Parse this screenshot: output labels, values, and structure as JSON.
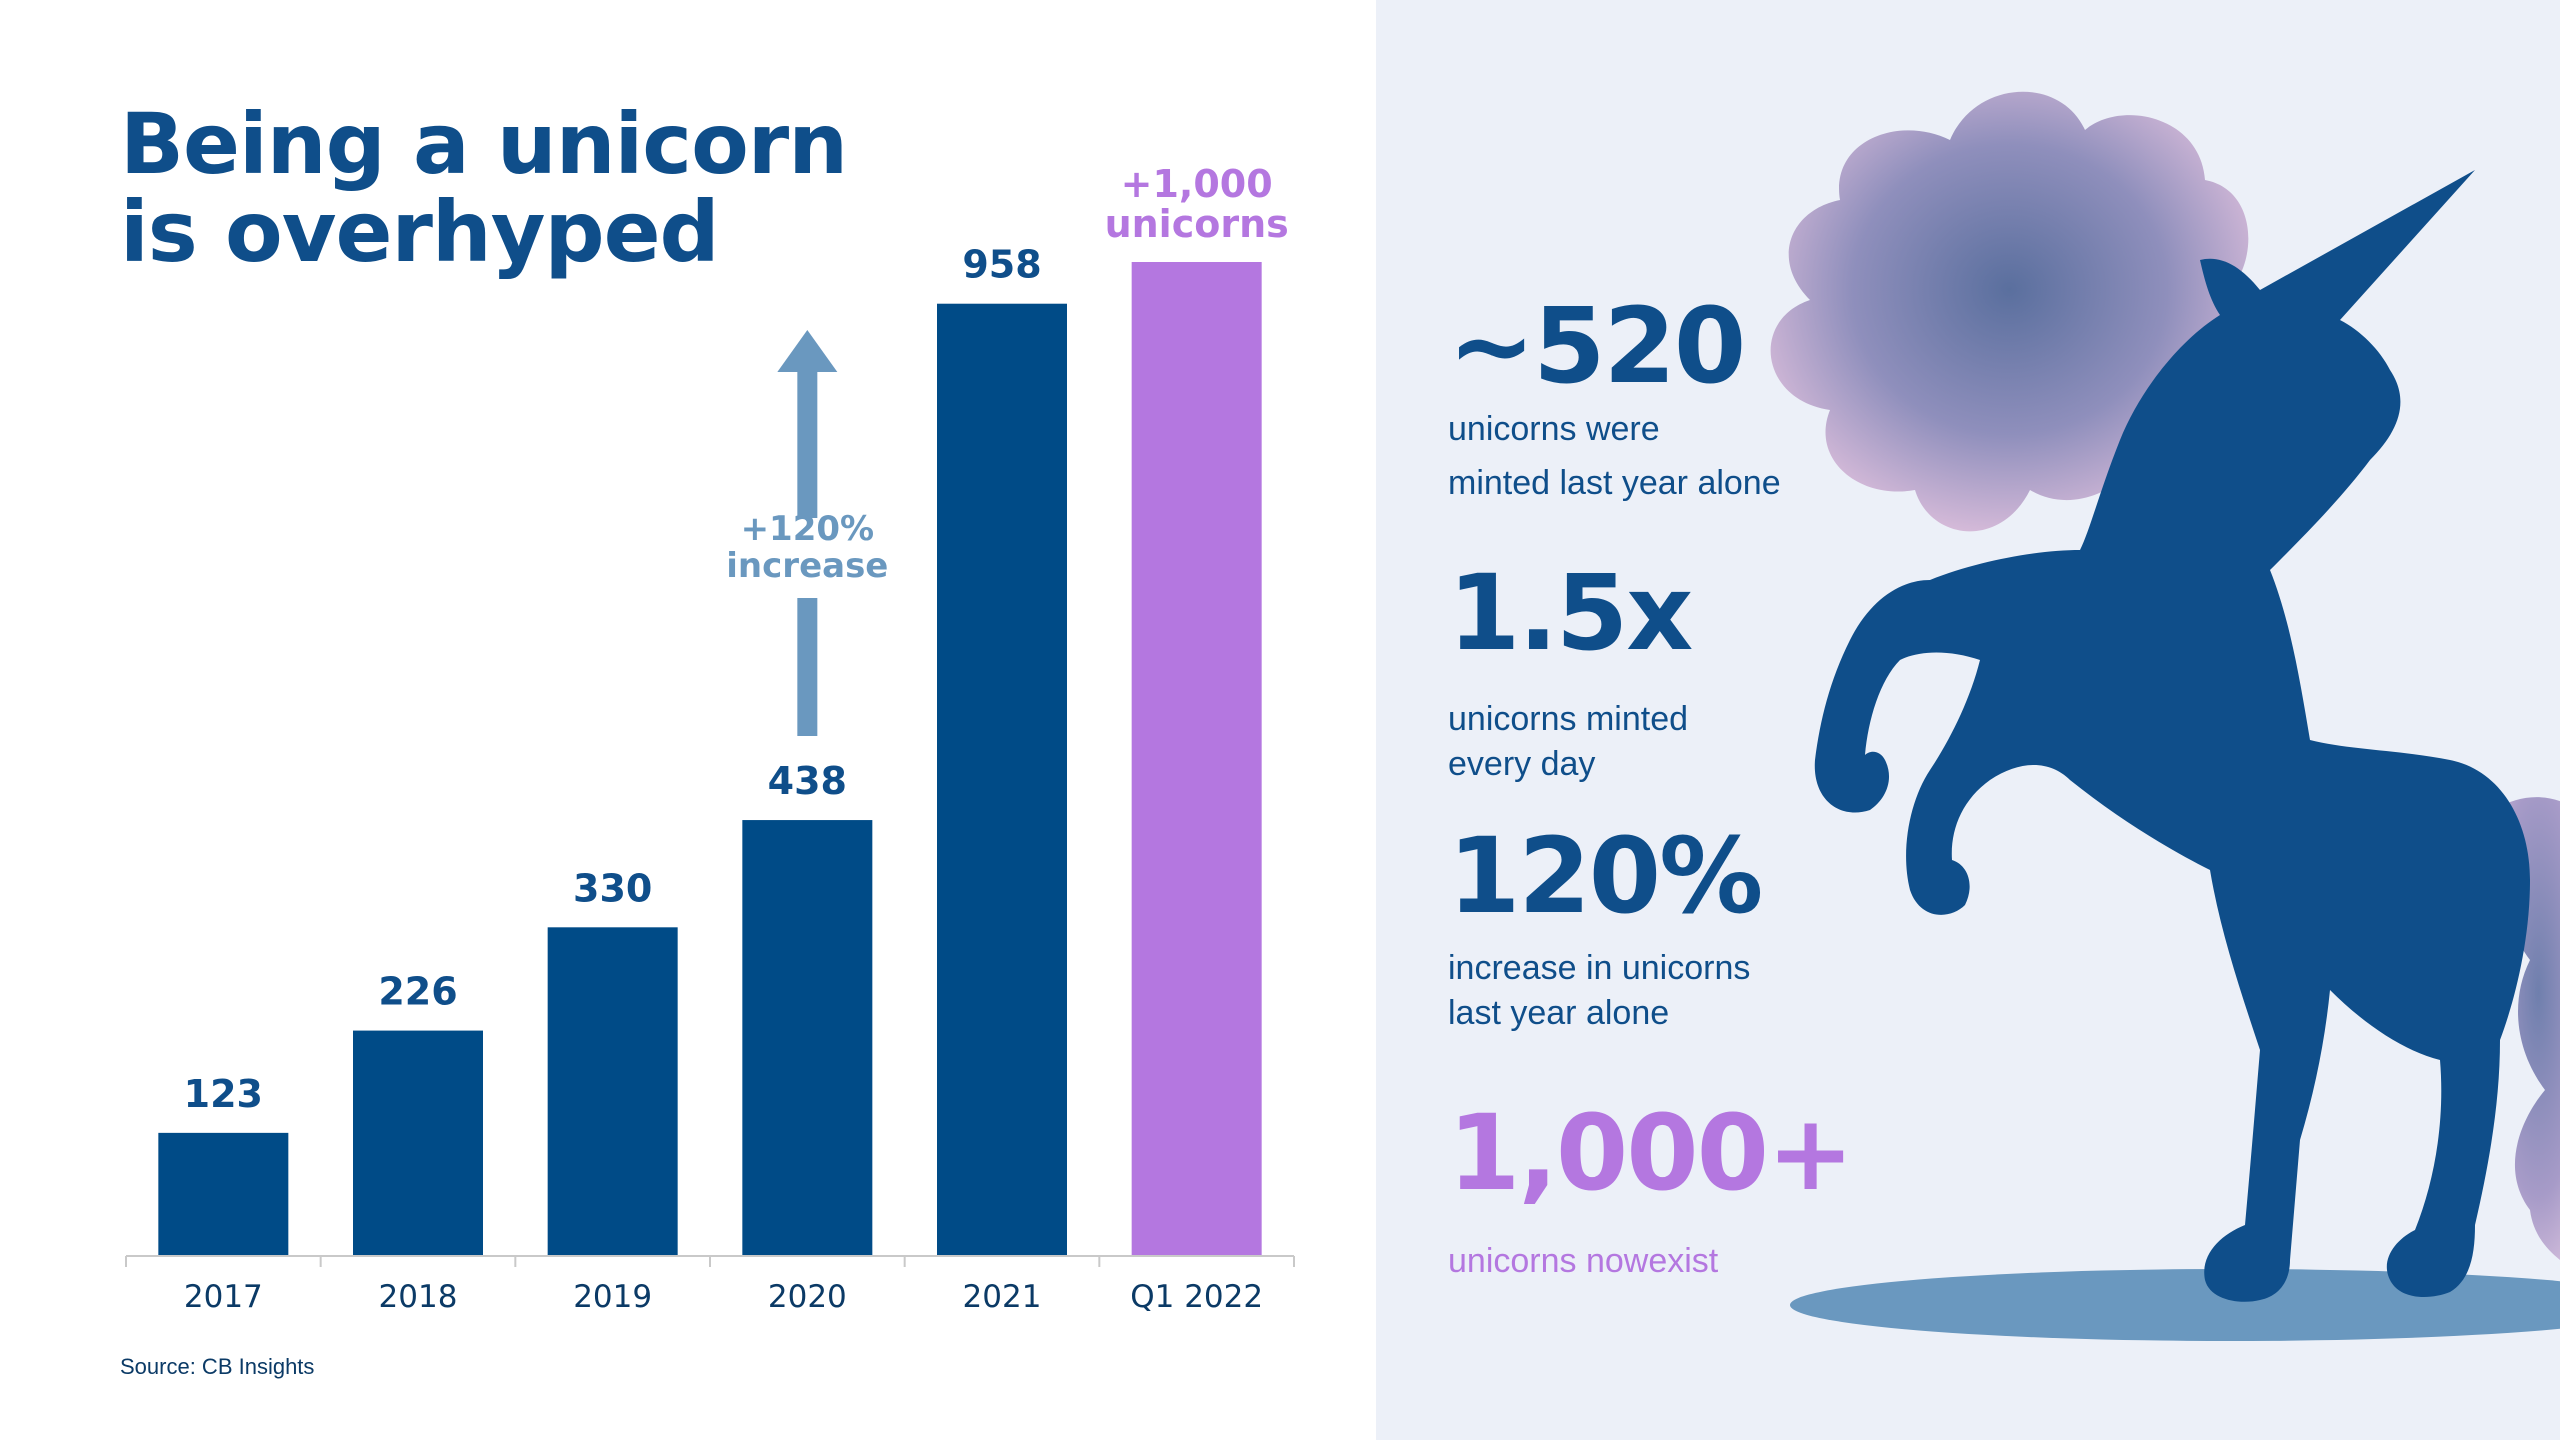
{
  "title": {
    "line1": "Being a unicorn",
    "line2": "is overhyped"
  },
  "source": "Source: CB Insights",
  "colors": {
    "bar": "#004b87",
    "highlight": "#b477e0",
    "arrow": "#6a98bf",
    "axis": "#c9c9c9",
    "panel": "#ecf0f8"
  },
  "annotations": {
    "arrow_label": [
      "+120%",
      "increase"
    ],
    "highlight_label": [
      "+1,000",
      "unicorns"
    ]
  },
  "stats": [
    {
      "value": "~520",
      "text": [
        "unicorns were",
        "minted last year alone"
      ]
    },
    {
      "value": "1.5x",
      "text": [
        "unicorns minted",
        "every day"
      ]
    },
    {
      "value": "120%",
      "text": [
        "increase in unicorns",
        "last year alone"
      ]
    },
    {
      "value": "1,000+",
      "text": [
        "unicorns nowexist"
      ]
    }
  ],
  "illustration": {
    "icon": "unicorn-icon"
  },
  "chart_data": {
    "type": "bar",
    "title": "",
    "xlabel": "",
    "ylabel": "",
    "categories": [
      "2017",
      "2018",
      "2019",
      "2020",
      "2021",
      "Q1 2022"
    ],
    "values": [
      123,
      226,
      330,
      438,
      958,
      1000
    ],
    "value_labels": [
      "123",
      "226",
      "330",
      "438",
      "958",
      ""
    ],
    "highlight_index": 5,
    "ylim": [
      0,
      1000
    ],
    "grid": false,
    "legend": "none"
  }
}
